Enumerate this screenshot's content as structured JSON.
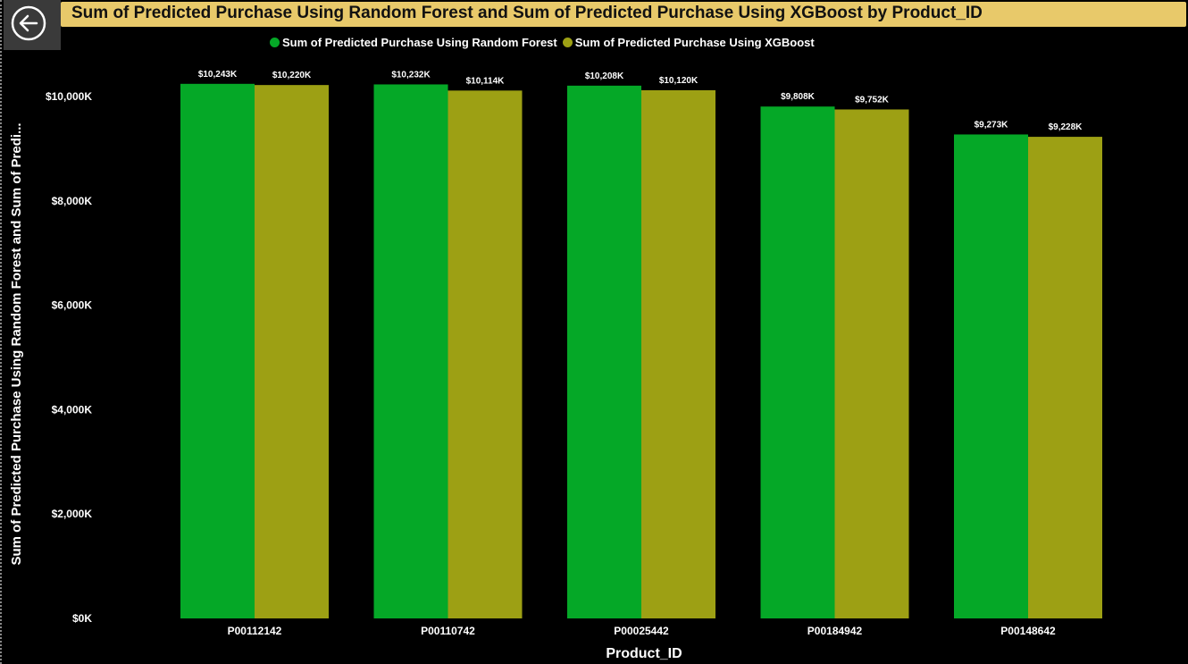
{
  "title": "Sum of Predicted Purchase Using Random Forest and Sum of Predicted Purchase Using XGBoost by Product_ID",
  "back_button_icon": "back-arrow-icon",
  "colors": {
    "title_bar": "#e8c96a",
    "random_forest": "#05a827",
    "xgboost": "#9da014",
    "background": "#000000"
  },
  "chart_data": {
    "type": "bar",
    "categories": [
      "P00112142",
      "P00110742",
      "P00025442",
      "P00184942",
      "P00148642"
    ],
    "series": [
      {
        "name": "Sum of Predicted Purchase Using Random Forest",
        "values": [
          10243,
          10232,
          10208,
          9808,
          9273
        ],
        "labels": [
          "$10,243K",
          "$10,232K",
          "$10,208K",
          "$9,808K",
          "$9,273K"
        ],
        "color": "#05a827"
      },
      {
        "name": "Sum of Predicted Purchase Using XGBoost",
        "values": [
          10220,
          10114,
          10120,
          9752,
          9228
        ],
        "labels": [
          "$10,220K",
          "$10,114K",
          "$10,120K",
          "$9,752K",
          "$9,228K"
        ],
        "color": "#9da014"
      }
    ],
    "xlabel": "Product_ID",
    "ylabel": "Sum of Predicted Purchase Using Random Forest and Sum of Predi...",
    "ylim": [
      0,
      10000
    ],
    "yticks": [
      0,
      2000,
      4000,
      6000,
      8000,
      10000
    ],
    "ytick_labels": [
      "$0K",
      "$2,000K",
      "$4,000K",
      "$6,000K",
      "$8,000K",
      "$10,000K"
    ],
    "grid": false,
    "legend_position": "top-center"
  }
}
